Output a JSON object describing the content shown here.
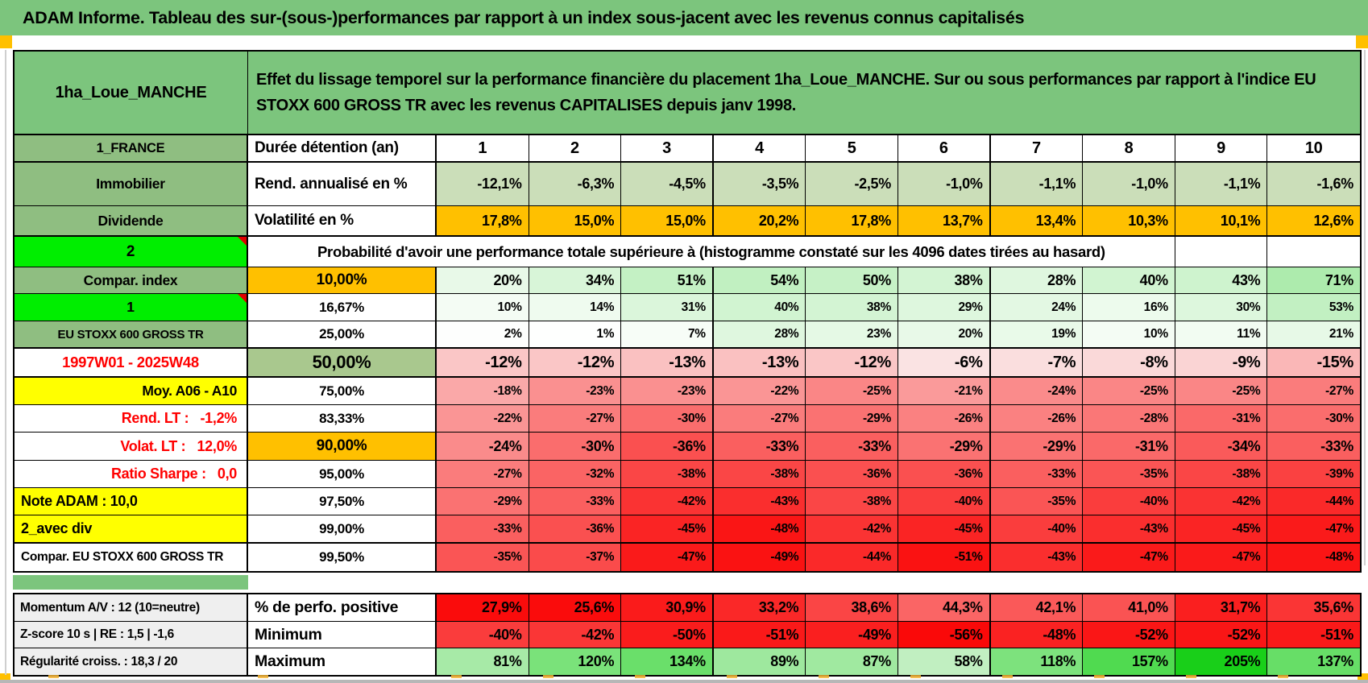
{
  "page": {
    "title": "ADAM Informe. Tableau des sur-(sous-)performances par rapport à un index sous-jacent avec les revenus connus capitalisés"
  },
  "colors": {
    "header_green": "#7cc57d",
    "label_green": "#8fbe81",
    "sage_green": "#cbdeb9",
    "band_sage": "#a9c88e",
    "orange": "#ffc000",
    "yellow": "#ffff00",
    "bright_green": "#00ee00",
    "red_text": "#ff0000",
    "gray_label": "#efefef",
    "comment_marker_red": "#e00000"
  },
  "table": {
    "name": "1ha_Loue_MANCHE",
    "description": "Effet du lissage temporel sur la performance financière du placement 1ha_Loue_MANCHE. Sur ou sous performances par rapport à l'indice EU STOXX 600 GROSS TR avec les revenus CAPITALISES depuis janv 1998.",
    "col_headers": [
      "1",
      "2",
      "3",
      "4",
      "5",
      "6",
      "7",
      "8",
      "9",
      "10"
    ],
    "rows": [
      {
        "kind": "cols",
        "a": "1_FRANCE",
        "a_fs": 16.5,
        "b": "Durée détention (an)"
      },
      {
        "kind": "vals",
        "a": "Immobilier",
        "a_fs": 17.5,
        "b": "Rend. annualisé en %",
        "scale": "sage",
        "em": true,
        "cells": [
          "-12,1%",
          "-6,3%",
          "-4,5%",
          "-3,5%",
          "-2,5%",
          "-1,0%",
          "-1,1%",
          "-1,0%",
          "-1,1%",
          "-1,6%"
        ]
      },
      {
        "kind": "vals",
        "a": "Dividende",
        "a_fs": 17.5,
        "b": "Volatilité en %",
        "scale": "orange",
        "em": true,
        "cells": [
          "17,8%",
          "15,0%",
          "15,0%",
          "20,2%",
          "17,8%",
          "13,7%",
          "13,4%",
          "10,3%",
          "10,1%",
          "12,6%"
        ]
      },
      {
        "kind": "span",
        "a": "2",
        "a_fs": 19,
        "a_bg": "bright",
        "marker": true,
        "span_text": "Probabilité d'avoir une performance totale supérieure à (histogramme constaté sur les 4096 dates tirées au hasard)"
      },
      {
        "kind": "vals",
        "a": "Compar. index",
        "a_fs": 17.5,
        "b": "10,00%",
        "b_bg": "orange",
        "b_center": true,
        "scale": "pos",
        "em": true,
        "cells": [
          "20%",
          "34%",
          "51%",
          "54%",
          "50%",
          "38%",
          "28%",
          "40%",
          "43%",
          "71%"
        ]
      },
      {
        "kind": "vals",
        "a": "1",
        "a_fs": 17.5,
        "a_bg": "bright",
        "marker": true,
        "b": "16,67%",
        "b_center": true,
        "scale": "pos",
        "cells": [
          "10%",
          "14%",
          "31%",
          "40%",
          "38%",
          "29%",
          "24%",
          "16%",
          "30%",
          "53%"
        ]
      },
      {
        "kind": "vals",
        "a": "EU STOXX 600 GROSS TR",
        "a_fs": 15,
        "b": "25,00%",
        "b_center": true,
        "scale": "pos",
        "cells": [
          "2%",
          "1%",
          "7%",
          "28%",
          "23%",
          "20%",
          "19%",
          "10%",
          "11%",
          "21%"
        ]
      },
      {
        "kind": "vals",
        "a": "1997W01 - 2025W48",
        "a_fs": 18.5,
        "a_bg": "white",
        "a_fg": "red",
        "b": "50,00%",
        "b_bg": "sage",
        "b_center": true,
        "scale": "neg",
        "em2": true,
        "cells": [
          "-12%",
          "-12%",
          "-13%",
          "-13%",
          "-12%",
          "-6%",
          "-7%",
          "-8%",
          "-9%",
          "-15%"
        ]
      },
      {
        "kind": "vals",
        "a": "Moy. A06 - A10",
        "a_fs": 17.5,
        "a_bg": "yellow",
        "a_align": "right",
        "b": "75,00%",
        "b_center": true,
        "scale": "neg",
        "cells": [
          "-18%",
          "-23%",
          "-23%",
          "-22%",
          "-25%",
          "-21%",
          "-24%",
          "-25%",
          "-25%",
          "-27%"
        ]
      },
      {
        "kind": "vals",
        "a": "Rend. LT :   -1,2%",
        "a_fs": 18,
        "a_bg": "white",
        "a_fg": "red",
        "a_align": "right",
        "b": "83,33%",
        "b_center": true,
        "scale": "neg",
        "cells": [
          "-22%",
          "-27%",
          "-30%",
          "-27%",
          "-29%",
          "-26%",
          "-26%",
          "-28%",
          "-31%",
          "-30%"
        ]
      },
      {
        "kind": "vals",
        "a": "Volat. LT :   12,0%",
        "a_fs": 18,
        "a_bg": "white",
        "a_fg": "red",
        "a_align": "right",
        "b": "90,00%",
        "b_bg": "orange",
        "b_center": true,
        "scale": "neg",
        "em": true,
        "cells": [
          "-24%",
          "-30%",
          "-36%",
          "-33%",
          "-33%",
          "-29%",
          "-29%",
          "-31%",
          "-34%",
          "-33%"
        ]
      },
      {
        "kind": "vals",
        "a": "Ratio Sharpe :   0,0",
        "a_fs": 18,
        "a_bg": "white",
        "a_fg": "red",
        "a_align": "right",
        "b": "95,00%",
        "b_center": true,
        "scale": "neg",
        "cells": [
          "-27%",
          "-32%",
          "-38%",
          "-38%",
          "-36%",
          "-36%",
          "-33%",
          "-35%",
          "-38%",
          "-39%"
        ]
      },
      {
        "kind": "vals",
        "a": "Note ADAM : 10,0",
        "a_fs": 18,
        "a_bg": "yellow",
        "a_align": "left",
        "b": "97,50%",
        "b_center": true,
        "scale": "neg",
        "cells": [
          "-29%",
          "-33%",
          "-42%",
          "-43%",
          "-38%",
          "-40%",
          "-35%",
          "-40%",
          "-42%",
          "-44%"
        ]
      },
      {
        "kind": "vals",
        "a": "2_avec div",
        "a_fs": 18,
        "a_bg": "yellow",
        "a_align": "left",
        "b": "99,00%",
        "b_center": true,
        "scale": "neg",
        "cells": [
          "-33%",
          "-36%",
          "-45%",
          "-48%",
          "-42%",
          "-45%",
          "-40%",
          "-43%",
          "-45%",
          "-47%"
        ]
      },
      {
        "kind": "vals",
        "a": "Compar. EU STOXX 600 GROSS TR",
        "a_fs": 15.5,
        "a_bg": "white",
        "a_align": "left",
        "b": "99,50%",
        "b_center": true,
        "scale": "neg",
        "cells": [
          "-35%",
          "-37%",
          "-47%",
          "-49%",
          "-44%",
          "-51%",
          "-43%",
          "-47%",
          "-47%",
          "-48%"
        ]
      }
    ]
  },
  "footer": {
    "rows": [
      {
        "a": "Momentum A/V : 12 (10=neutre)",
        "b": "% de perfo. positive",
        "scale": "pctred",
        "cells": [
          "27,9%",
          "25,6%",
          "30,9%",
          "33,2%",
          "38,6%",
          "44,3%",
          "42,1%",
          "41,0%",
          "31,7%",
          "35,6%"
        ]
      },
      {
        "a": "Z-score 10 s | RE : 1,5 | -1,6",
        "b": "Minimum",
        "scale": "minred",
        "cells": [
          "-40%",
          "-42%",
          "-50%",
          "-51%",
          "-49%",
          "-56%",
          "-48%",
          "-52%",
          "-52%",
          "-51%"
        ]
      },
      {
        "a": "Régularité croiss. : 18,3 / 20",
        "b": "Maximum",
        "scale": "maxgreen",
        "cells": [
          "81%",
          "120%",
          "134%",
          "89%",
          "87%",
          "58%",
          "118%",
          "157%",
          "205%",
          "137%"
        ]
      }
    ]
  }
}
